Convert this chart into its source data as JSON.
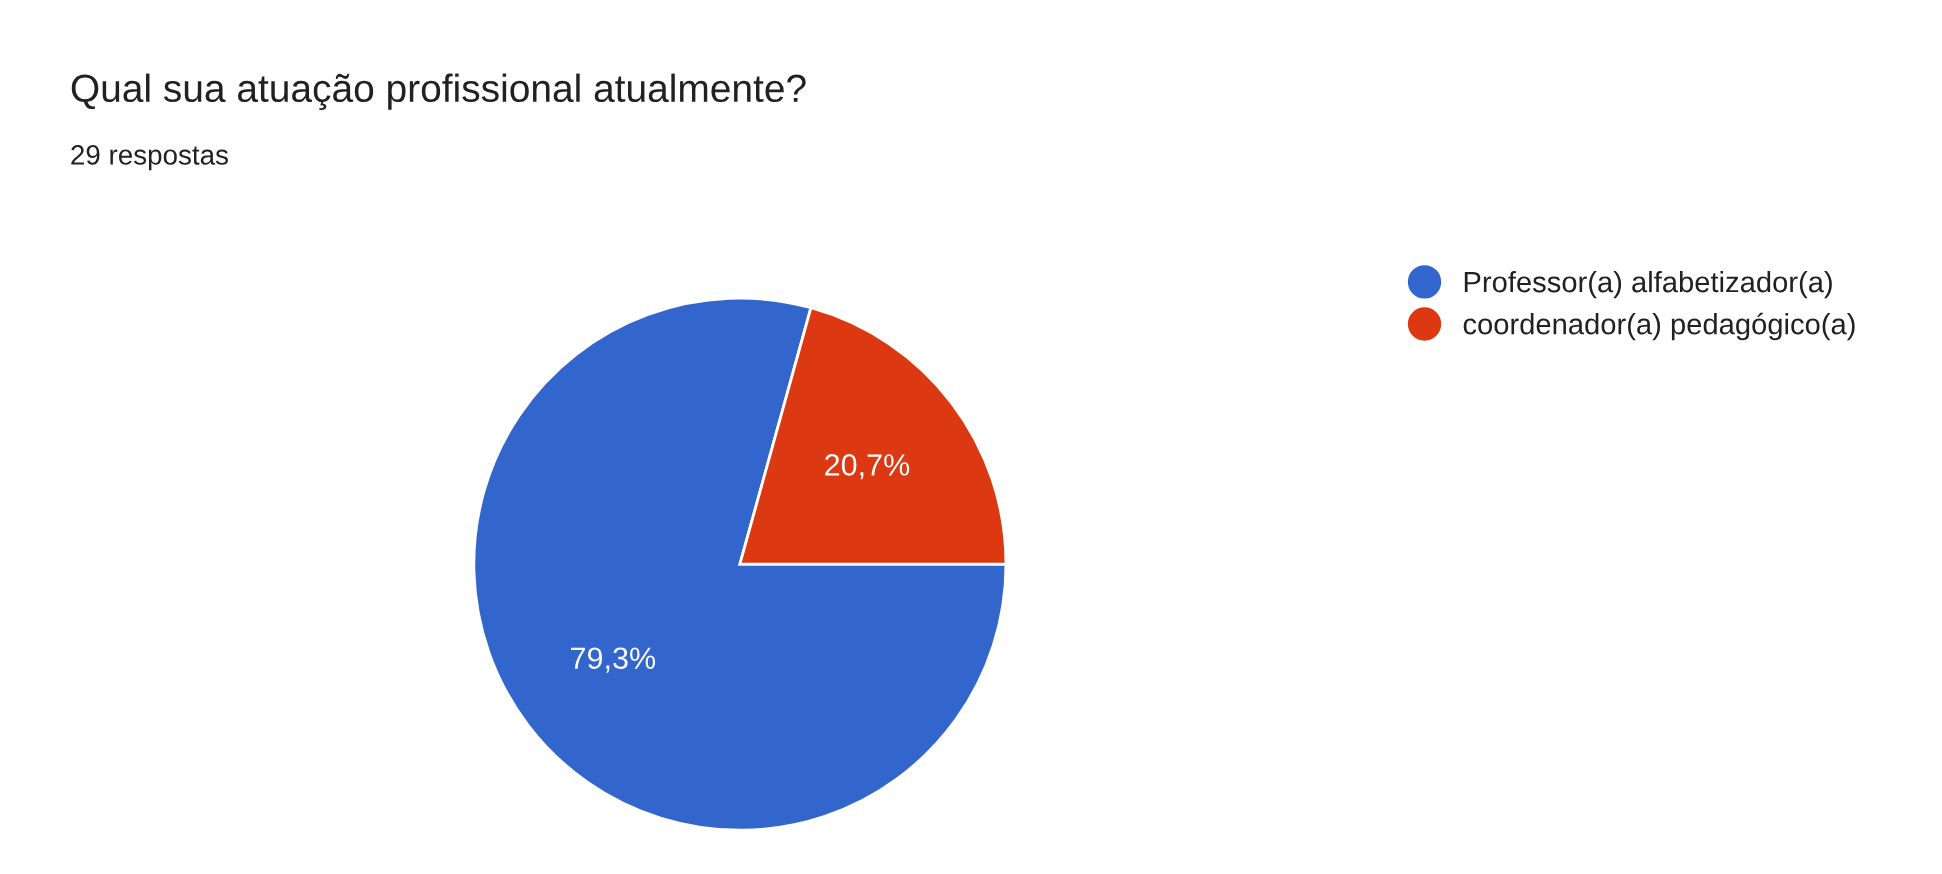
{
  "chart_data": {
    "type": "pie",
    "title": "Qual sua atuação profissional atualmente?",
    "subtitle": "29 respostas",
    "categories": [
      "Professor(a) alfabetizador(a)",
      "coordenador(a) pedagógico(a)"
    ],
    "values": [
      79.3,
      20.7
    ],
    "colors": [
      "#3366cc",
      "#dc3912"
    ],
    "value_labels": [
      "79,3%",
      "20,7%"
    ],
    "legend": "right"
  }
}
